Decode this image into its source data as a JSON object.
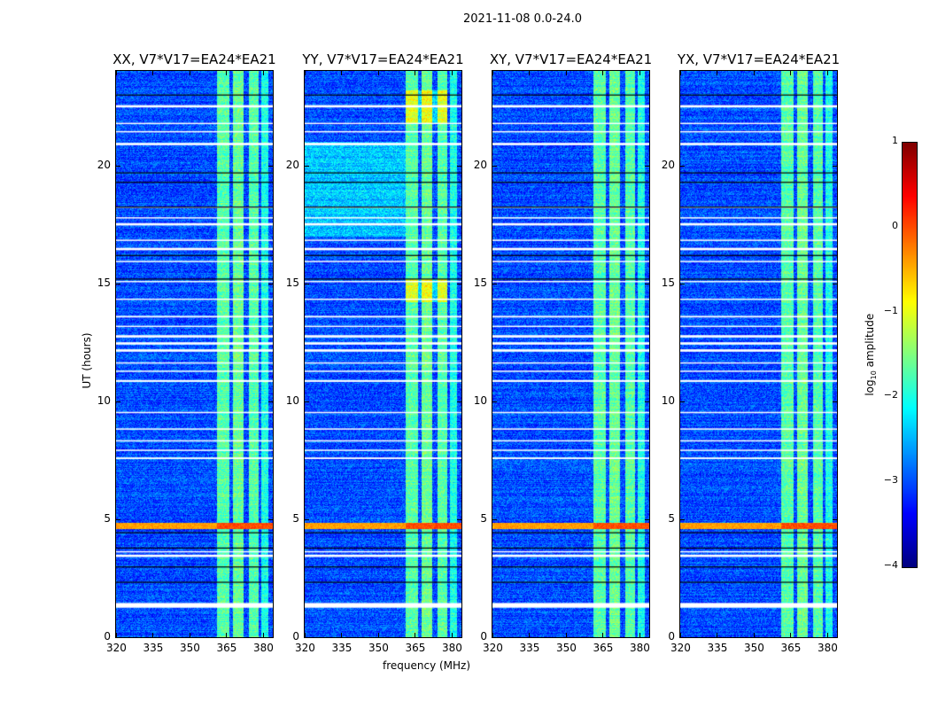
{
  "suptitle": "2021-11-08 0.0-24.0",
  "xlabel": "frequency (MHz)",
  "ylabel": "UT (hours)",
  "colorbar": {
    "label_prefix": "log",
    "label_sub": "10",
    "label_suffix": " amplitude",
    "ticks": [
      "1",
      "0",
      "−1",
      "−2",
      "−3",
      "−4"
    ],
    "tick_values": [
      1,
      0,
      -1,
      -2,
      -3,
      -4
    ]
  },
  "x_ticks": [
    "320",
    "335",
    "350",
    "365",
    "380"
  ],
  "x_tick_values": [
    320,
    335,
    350,
    365,
    380
  ],
  "y_ticks": [
    "0",
    "5",
    "10",
    "15",
    "20"
  ],
  "y_tick_values": [
    0,
    5,
    10,
    15,
    20
  ],
  "panels": [
    {
      "title": "XX, V7*V17=EA24*EA21",
      "pol": "XX"
    },
    {
      "title": "YY, V7*V17=EA24*EA21",
      "pol": "YY"
    },
    {
      "title": "XY, V7*V17=EA24*EA21",
      "pol": "XY"
    },
    {
      "title": "YX, V7*V17=EA24*EA21",
      "pol": "YX"
    }
  ],
  "chart_data": {
    "type": "heatmap",
    "title": "2021-11-08 0.0-24.0",
    "xlabel": "frequency (MHz)",
    "ylabel": "UT (hours)",
    "xlim": [
      320,
      384
    ],
    "ylim": [
      0,
      24
    ],
    "clim": [
      -4,
      1
    ],
    "colormap": "jet",
    "background_level": -3.0,
    "rfi_bands_mhz": [
      [
        361,
        366,
        -1.7
      ],
      [
        367.5,
        372,
        -1.6
      ],
      [
        374,
        378,
        -1.7
      ],
      [
        379,
        382,
        -2.0
      ]
    ],
    "flagged_rows_hours": [
      [
        1.25,
        1.45
      ],
      [
        3.4,
        3.5
      ],
      [
        3.6,
        3.65
      ],
      [
        7.55,
        7.62
      ],
      [
        7.9,
        7.95
      ],
      [
        8.3,
        8.35
      ],
      [
        8.8,
        8.85
      ],
      [
        9.5,
        9.55
      ],
      [
        10.82,
        10.9
      ],
      [
        11.25,
        11.3
      ],
      [
        11.6,
        11.65
      ],
      [
        12.1,
        12.2
      ],
      [
        12.4,
        12.5
      ],
      [
        12.7,
        12.8
      ],
      [
        13.15,
        13.2
      ],
      [
        13.55,
        13.62
      ],
      [
        14.3,
        14.35
      ],
      [
        15.05,
        15.1
      ],
      [
        15.9,
        15.95
      ],
      [
        16.4,
        16.5
      ],
      [
        16.8,
        16.85
      ],
      [
        17.45,
        17.55
      ],
      [
        17.75,
        17.8
      ],
      [
        18.2,
        18.25
      ],
      [
        20.85,
        20.95
      ],
      [
        21.4,
        21.45
      ],
      [
        21.75,
        21.8
      ],
      [
        22.45,
        22.55
      ]
    ],
    "dark_rows_hours": [
      2.35,
      3.0,
      3.8,
      4.45,
      15.2,
      16.2,
      18.25,
      19.3,
      19.7,
      23.0
    ],
    "rfi_rows_hours": [
      [
        4.6,
        4.85,
        -0.4
      ]
    ]
  }
}
